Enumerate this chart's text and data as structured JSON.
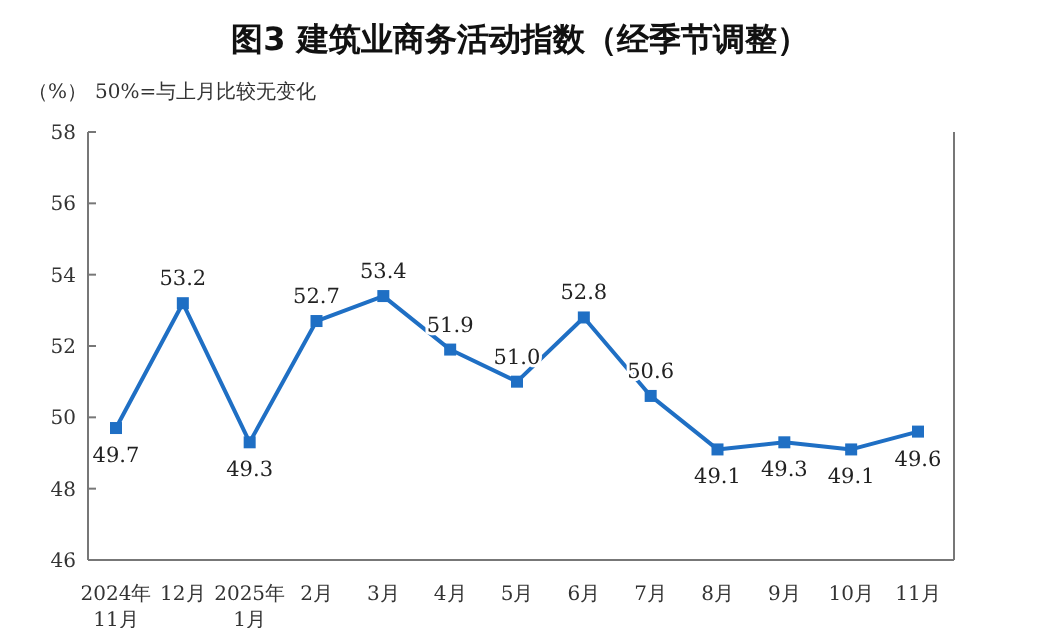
{
  "chart_data": {
    "type": "line",
    "title": "图3  建筑业商务活动指数（经季节调整）",
    "annotations": [
      "（%）",
      "50%=与上月比较无变化"
    ],
    "categories": [
      "2024年\n11月",
      "12月",
      "2025年\n1月",
      "2月",
      "3月",
      "4月",
      "5月",
      "6月",
      "7月",
      "8月",
      "9月",
      "10月",
      "11月"
    ],
    "series": [
      {
        "color": "#1f6fc4",
        "values": [
          49.7,
          53.2,
          49.3,
          52.7,
          53.4,
          51.9,
          51.0,
          52.8,
          50.6,
          49.1,
          49.3,
          49.1,
          49.6
        ],
        "value_labels": [
          "49.7",
          "53.2",
          "49.3",
          "52.7",
          "53.4",
          "51.9",
          "51.0",
          "52.8",
          "50.6",
          "49.1",
          "49.3",
          "49.1",
          "49.6"
        ]
      }
    ],
    "ylim": [
      46,
      58
    ],
    "yticks": [
      46,
      48,
      50,
      52,
      54,
      56,
      58
    ],
    "grid": false,
    "legend": false,
    "marker": "square",
    "line_style": "solid"
  }
}
